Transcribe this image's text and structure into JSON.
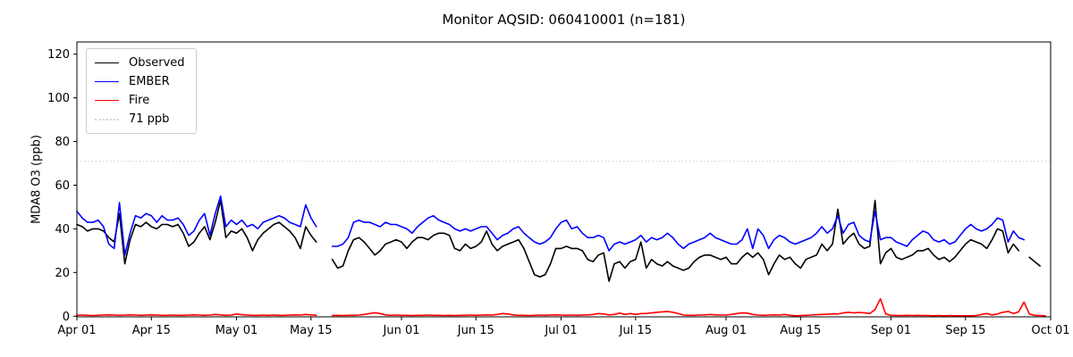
{
  "figure": {
    "title": "Monitor AQSID: 060410001 (n=181)",
    "ylabel": "MDA8 O3 (ppb)"
  },
  "legend": {
    "items": [
      {
        "label": "Observed",
        "color": "#000000",
        "style": "solid"
      },
      {
        "label": "EMBER",
        "color": "#0000ff",
        "style": "solid"
      },
      {
        "label": "Fire",
        "color": "#ff0000",
        "style": "solid"
      },
      {
        "label": "71 ppb",
        "color": "#d3d3d3",
        "style": "dotted"
      }
    ]
  },
  "chart_data": {
    "type": "line",
    "title": "Monitor AQSID: 060410001 (n=181)",
    "xlabel": "",
    "ylabel": "MDA8 O3 (ppb)",
    "x_unit": "daily values, day index 0 = Apr 01",
    "xlim_days": [
      0,
      183
    ],
    "ylim": [
      -0.3,
      125.6
    ],
    "grid": false,
    "legend_position": "upper left",
    "y_ticks": [
      0,
      20,
      40,
      60,
      80,
      100,
      120
    ],
    "x_ticks": [
      {
        "label": "Apr 01",
        "day": 0
      },
      {
        "label": "Apr 15",
        "day": 14
      },
      {
        "label": "May 01",
        "day": 30
      },
      {
        "label": "May 15",
        "day": 44
      },
      {
        "label": "Jun 01",
        "day": 61
      },
      {
        "label": "Jun 15",
        "day": 75
      },
      {
        "label": "Jul 01",
        "day": 91
      },
      {
        "label": "Jul 15",
        "day": 105
      },
      {
        "label": "Aug 01",
        "day": 122
      },
      {
        "label": "Aug 15",
        "day": 136
      },
      {
        "label": "Sep 01",
        "day": 153
      },
      {
        "label": "Sep 15",
        "day": 167
      },
      {
        "label": "Oct 01",
        "day": 183
      }
    ],
    "threshold": {
      "label": "71 ppb",
      "value": 71,
      "color": "#d3d3d3",
      "style": "dotted"
    },
    "notes": "null = gap drawn in plot (both main series break May 17-18; Observed also breaks near Sep 26 and Sep 30; EMBER ends Sep 26)",
    "series": [
      {
        "name": "Observed",
        "color": "#000000",
        "values": [
          42,
          41,
          39,
          40,
          40,
          39,
          36,
          34,
          47,
          24,
          35,
          42,
          41,
          43,
          41,
          40,
          42,
          42,
          41,
          42,
          38,
          32,
          34,
          38,
          41,
          35,
          43,
          53,
          36,
          39,
          38,
          40,
          36,
          30,
          35,
          38,
          40,
          42,
          43,
          41,
          39,
          36,
          31,
          41,
          37,
          34,
          null,
          null,
          26,
          22,
          23,
          30,
          35,
          36,
          34,
          31,
          28,
          30,
          33,
          34,
          35,
          34,
          31,
          34,
          36,
          36,
          35,
          37,
          38,
          38,
          37,
          31,
          30,
          33,
          31,
          32,
          34,
          39,
          33,
          30,
          32,
          33,
          34,
          35,
          31,
          25,
          19,
          18,
          19,
          24,
          31,
          31,
          32,
          31,
          31,
          30,
          26,
          25,
          28,
          29,
          16,
          24,
          25,
          22,
          25,
          26,
          34,
          22,
          26,
          24,
          23,
          25,
          23,
          22,
          21,
          22,
          25,
          27,
          28,
          28,
          27,
          26,
          27,
          24,
          24,
          27,
          29,
          27,
          29,
          26,
          19,
          24,
          28,
          26,
          27,
          24,
          22,
          26,
          27,
          28,
          33,
          30,
          33,
          49,
          33,
          36,
          38,
          33,
          31,
          32,
          53,
          24,
          29,
          31,
          27,
          26,
          27,
          28,
          30,
          30,
          31,
          28,
          26,
          27,
          25,
          27,
          30,
          33,
          35,
          34,
          33,
          31,
          35,
          40,
          39,
          29,
          33,
          30,
          null,
          27,
          25,
          23,
          null
        ]
      },
      {
        "name": "EMBER",
        "color": "#0000ff",
        "values": [
          48,
          45,
          43,
          43,
          44,
          41,
          33,
          31,
          52,
          28,
          38,
          46,
          45,
          47,
          46,
          43,
          46,
          44,
          44,
          45,
          42,
          37,
          39,
          44,
          47,
          37,
          47,
          55,
          41,
          44,
          42,
          44,
          41,
          42,
          40,
          43,
          44,
          45,
          46,
          45,
          43,
          42,
          41,
          51,
          45,
          41,
          null,
          null,
          32,
          32,
          33,
          36,
          43,
          44,
          43,
          43,
          42,
          41,
          43,
          42,
          42,
          41,
          40,
          38,
          41,
          43,
          45,
          46,
          44,
          43,
          42,
          40,
          39,
          40,
          39,
          40,
          41,
          41,
          38,
          35,
          37,
          38,
          40,
          41,
          38,
          36,
          34,
          33,
          34,
          36,
          40,
          43,
          44,
          40,
          41,
          38,
          36,
          36,
          37,
          36,
          30,
          33,
          34,
          33,
          34,
          35,
          37,
          34,
          36,
          35,
          36,
          38,
          36,
          33,
          31,
          33,
          34,
          35,
          36,
          38,
          36,
          35,
          34,
          33,
          33,
          35,
          40,
          31,
          40,
          37,
          31,
          35,
          37,
          36,
          34,
          33,
          34,
          35,
          36,
          38,
          41,
          38,
          40,
          46,
          38,
          42,
          43,
          37,
          35,
          34,
          48,
          35,
          36,
          36,
          34,
          33,
          32,
          35,
          37,
          39,
          38,
          35,
          34,
          35,
          33,
          34,
          37,
          40,
          42,
          40,
          39,
          40,
          42,
          45,
          44,
          34,
          39,
          36,
          35,
          null,
          null,
          null,
          null
        ]
      },
      {
        "name": "Fire",
        "color": "#ff0000",
        "values": [
          0.4,
          0.5,
          0.4,
          0.3,
          0.4,
          0.5,
          0.6,
          0.5,
          0.4,
          0.5,
          0.6,
          0.5,
          0.4,
          0.5,
          0.6,
          0.5,
          0.4,
          0.4,
          0.5,
          0.4,
          0.4,
          0.5,
          0.6,
          0.5,
          0.4,
          0.5,
          0.8,
          0.6,
          0.4,
          0.5,
          1.0,
          0.7,
          0.5,
          0.4,
          0.4,
          0.5,
          0.4,
          0.5,
          0.4,
          0.4,
          0.5,
          0.6,
          0.5,
          0.8,
          0.6,
          0.4,
          null,
          null,
          0.3,
          0.4,
          0.3,
          0.4,
          0.4,
          0.5,
          0.8,
          1.2,
          1.6,
          1.2,
          0.6,
          0.4,
          0.5,
          0.4,
          0.4,
          0.3,
          0.4,
          0.4,
          0.5,
          0.4,
          0.4,
          0.3,
          0.4,
          0.3,
          0.4,
          0.4,
          0.5,
          0.4,
          0.5,
          0.6,
          0.5,
          0.8,
          1.2,
          1.0,
          0.6,
          0.4,
          0.4,
          0.3,
          0.4,
          0.5,
          0.4,
          0.5,
          0.6,
          0.5,
          0.4,
          0.5,
          0.4,
          0.5,
          0.6,
          0.8,
          1.2,
          1.0,
          0.6,
          0.8,
          1.4,
          0.8,
          1.2,
          0.8,
          1.2,
          1.2,
          1.5,
          1.8,
          2.0,
          2.2,
          1.8,
          1.2,
          0.5,
          0.4,
          0.4,
          0.5,
          0.6,
          0.8,
          0.6,
          0.5,
          0.5,
          0.8,
          1.2,
          1.5,
          1.4,
          0.8,
          0.5,
          0.4,
          0.5,
          0.6,
          0.5,
          0.8,
          0.4,
          0.2,
          0.3,
          0.4,
          0.5,
          0.7,
          0.8,
          0.9,
          1.0,
          1.0,
          1.5,
          1.8,
          1.5,
          1.7,
          1.5,
          1.2,
          3.0,
          8.0,
          1.0,
          0.4,
          0.3,
          0.3,
          0.4,
          0.3,
          0.4,
          0.3,
          0.3,
          0.2,
          0.3,
          0.2,
          0.3,
          0.2,
          0.2,
          0.2,
          0.2,
          0.3,
          0.8,
          1.2,
          0.6,
          1.0,
          1.8,
          2.2,
          1.2,
          2.0,
          6.5,
          1.0,
          0.4,
          0.3,
          0.2
        ]
      }
    ]
  }
}
